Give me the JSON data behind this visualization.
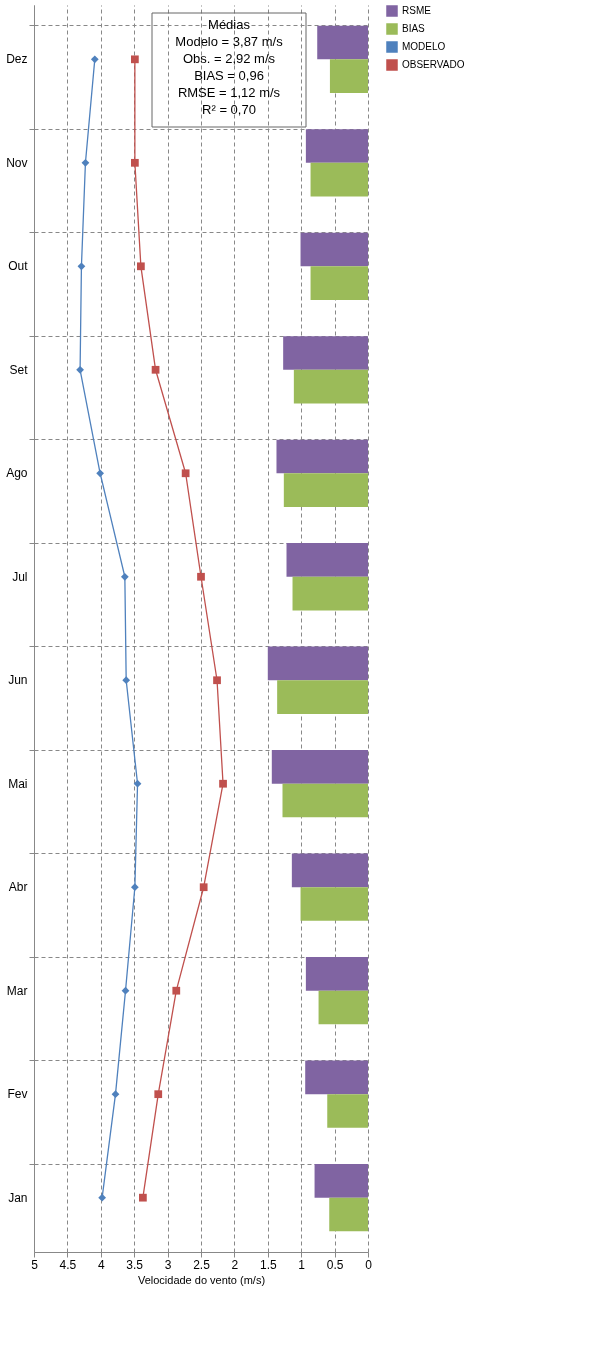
{
  "chart_data": {
    "type": "bar",
    "orientation": "horizontal",
    "xlabel": "Velocidade do vento (m/s)",
    "categories": [
      "Dez",
      "Nov",
      "Out",
      "Set",
      "Ago",
      "Jul",
      "Jun",
      "Mai",
      "Abr",
      "Mar",
      "Fev",
      "Jan"
    ],
    "series": [
      {
        "name": "RSME",
        "color": "#8064a2",
        "values": [
          0.76,
          0.93,
          1.01,
          1.27,
          1.37,
          1.22,
          1.5,
          1.44,
          1.14,
          0.93,
          0.94,
          0.8
        ]
      },
      {
        "name": "BIAS",
        "color": "#9bbb59",
        "values": [
          0.57,
          0.86,
          0.86,
          1.11,
          1.26,
          1.13,
          1.36,
          1.28,
          1.01,
          0.74,
          0.61,
          0.58
        ]
      },
      {
        "name": "MODELO",
        "type": "line",
        "marker": "diamond",
        "color": "#4f81bd",
        "values": [
          4.09,
          4.23,
          4.29,
          4.31,
          4.01,
          3.64,
          3.62,
          3.45,
          3.49,
          3.63,
          3.78,
          3.98
        ]
      },
      {
        "name": "OBSERVADO",
        "type": "line",
        "marker": "square",
        "color": "#c0504d",
        "values": [
          3.49,
          3.49,
          3.4,
          3.18,
          2.73,
          2.5,
          2.26,
          2.17,
          2.46,
          2.87,
          3.14,
          3.37
        ]
      }
    ],
    "xlim": [
      5,
      0
    ],
    "xticks": [
      5,
      4.5,
      4,
      3.5,
      3,
      2.5,
      2,
      1.5,
      1,
      0.5,
      0
    ],
    "grid": true,
    "line_style": "solid",
    "legend": "right",
    "annotations": [
      "Médias\nModelo = 3,87 m/s\nObs. = 2,92 m/s\nBIAS = 0,96\nRMSE = 1,12 m/s\nR² = 0,70"
    ]
  }
}
